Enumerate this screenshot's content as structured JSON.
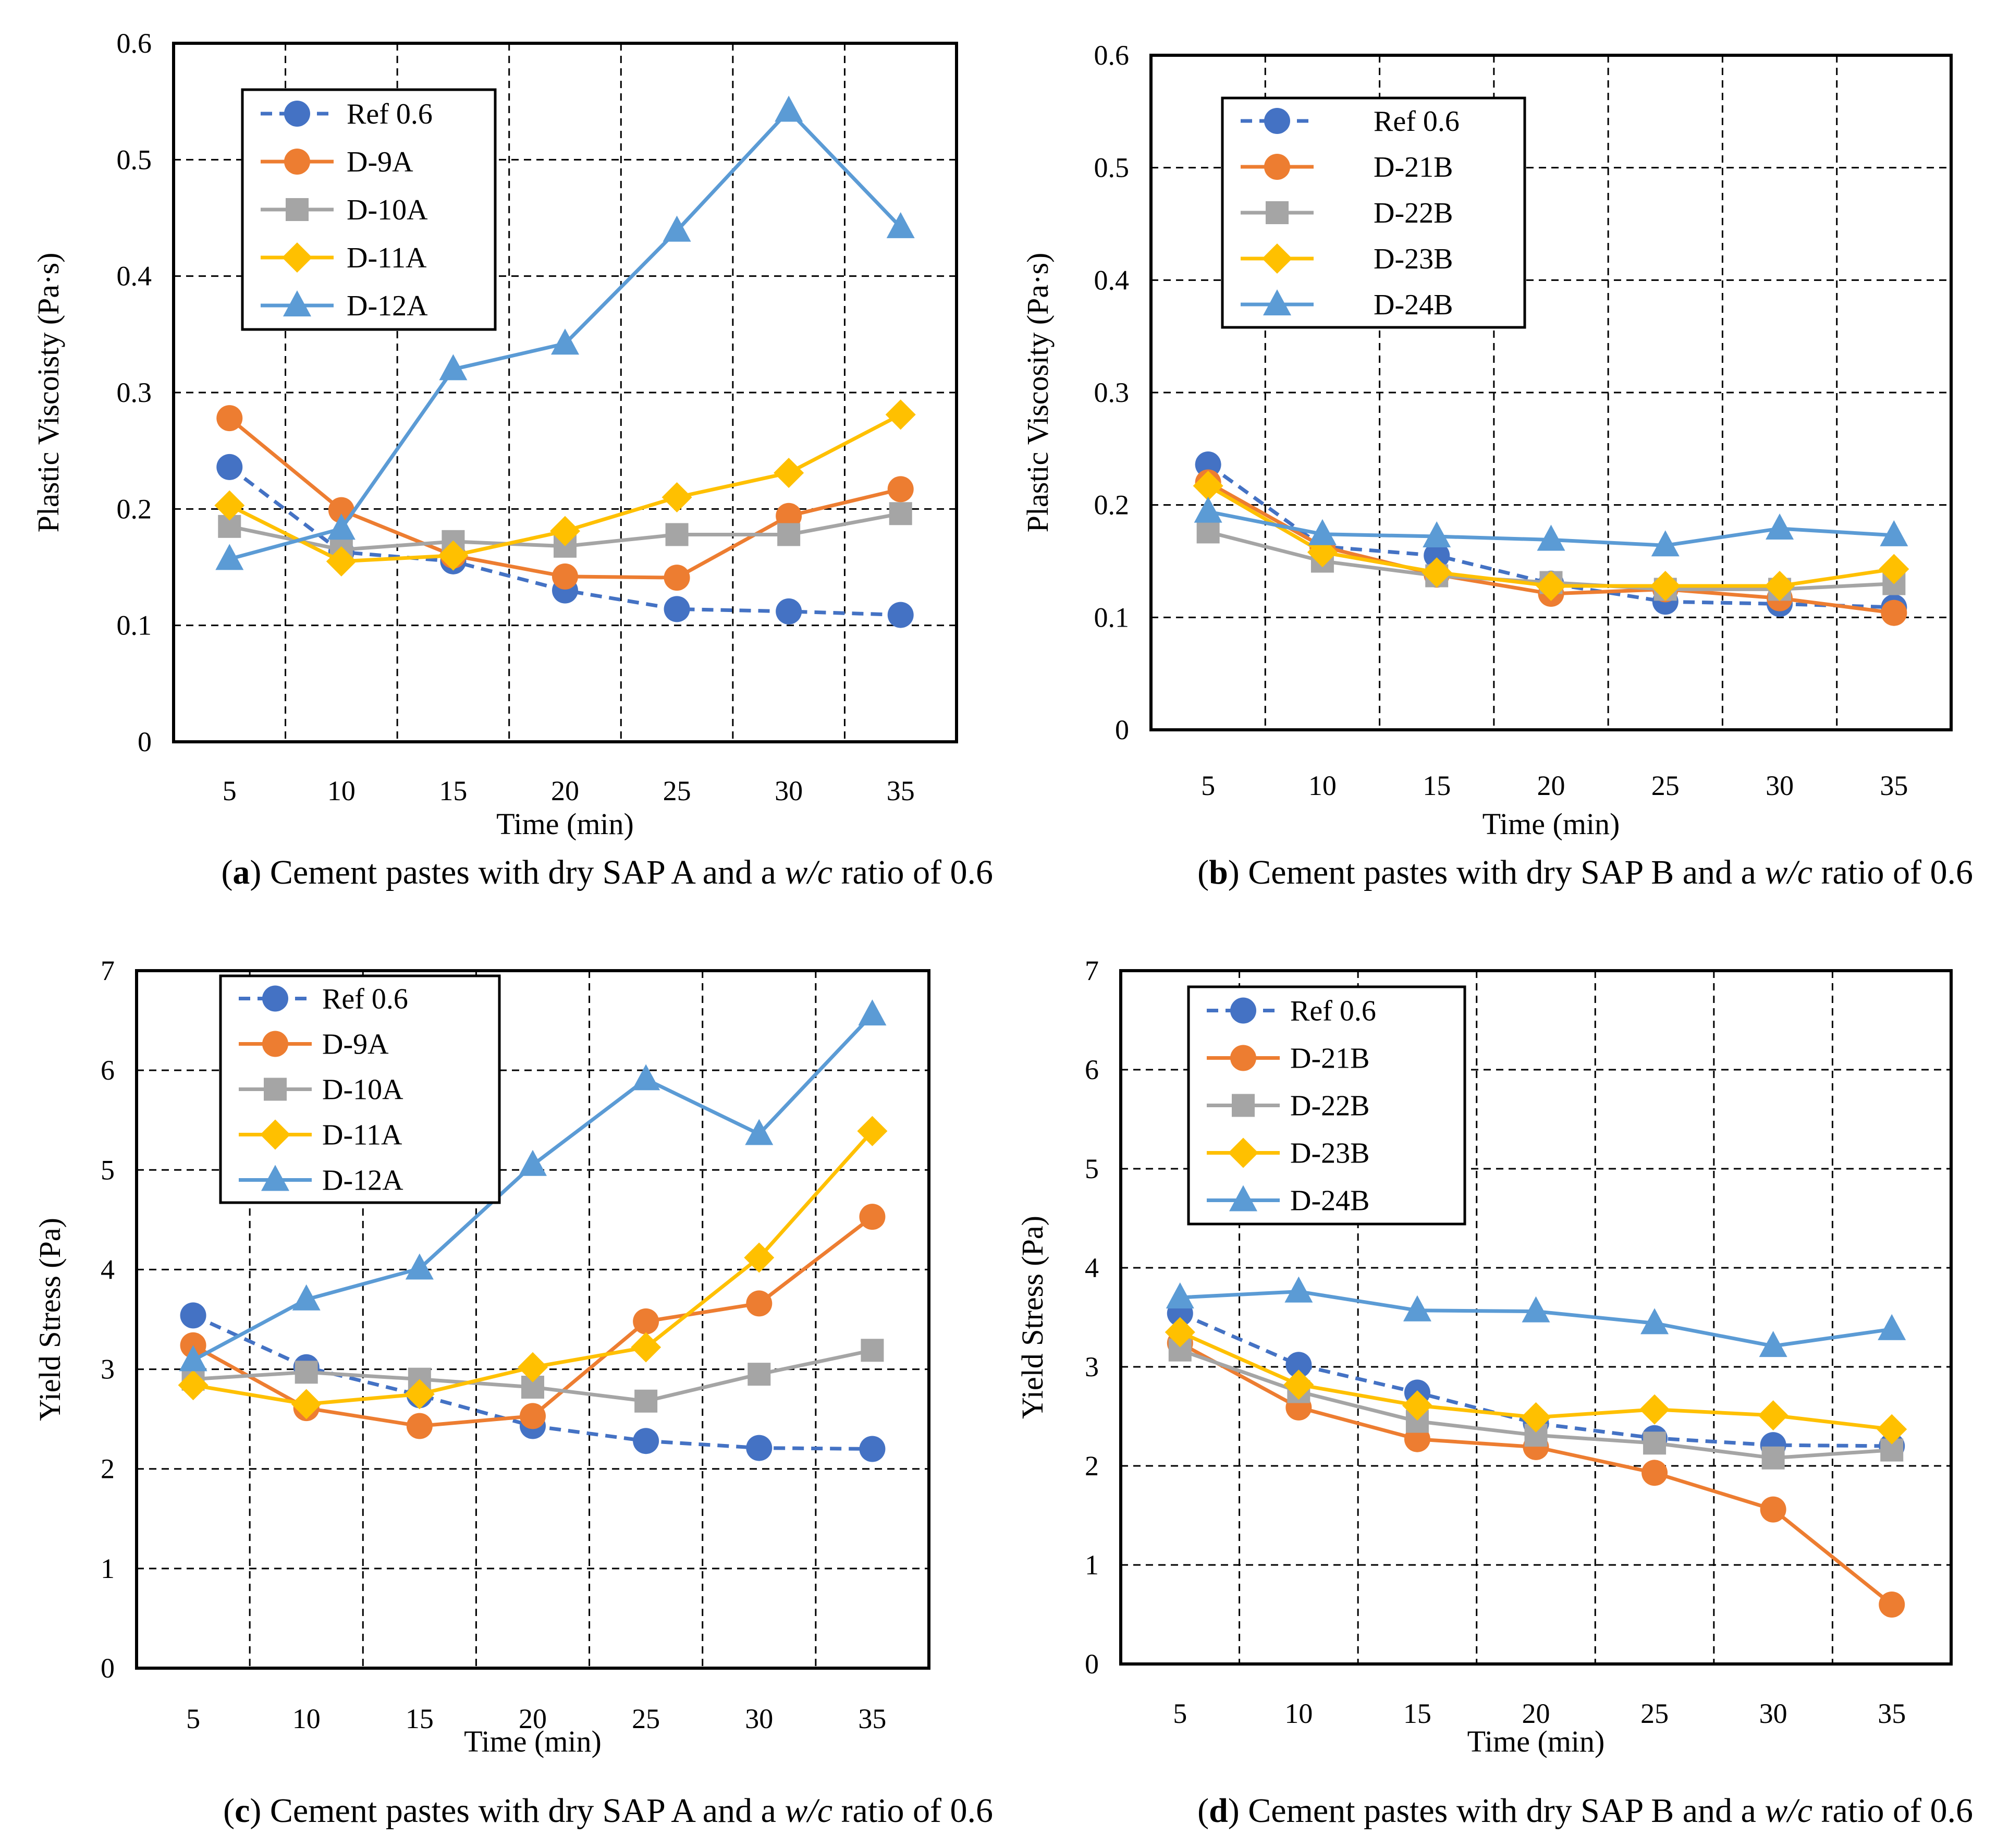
{
  "chart_data": [
    {
      "type": "line",
      "panel": "a",
      "caption_label": "a",
      "caption_text": " Cement pastes with dry SAP A and a ",
      "caption_var": "w/c",
      "caption_end": " ratio of 0.6",
      "xlabel": "Time (min)",
      "ylabel": "Plastic Viscoisty (Pa·s)",
      "categories": [
        "5",
        "10",
        "15",
        "20",
        "25",
        "30",
        "35"
      ],
      "ylim": [
        0,
        0.6
      ],
      "yticks": [
        "0",
        "0.1",
        "0.2",
        "0.3",
        "0.4",
        "0.5",
        "0.6"
      ],
      "grid": true,
      "legend_position": "top-left",
      "series": [
        {
          "name": "Ref 0.6",
          "values": [
            0.236,
            0.163,
            0.155,
            0.13,
            0.114,
            0.112,
            0.109
          ],
          "color": "#4472C4",
          "marker": "circle",
          "dash": true
        },
        {
          "name": "D-9A",
          "values": [
            0.278,
            0.199,
            0.16,
            0.142,
            0.141,
            0.194,
            0.217
          ],
          "color": "#ED7D31",
          "marker": "circle",
          "dash": false
        },
        {
          "name": "D-10A",
          "values": [
            0.185,
            0.165,
            0.172,
            0.168,
            0.178,
            0.178,
            0.196
          ],
          "color": "#A5A5A5",
          "marker": "square",
          "dash": false
        },
        {
          "name": "D-11A",
          "values": [
            0.203,
            0.155,
            0.16,
            0.181,
            0.21,
            0.231,
            0.281
          ],
          "color": "#FFC000",
          "marker": "diamond",
          "dash": false
        },
        {
          "name": "D-12A",
          "values": [
            0.157,
            0.183,
            0.32,
            0.342,
            0.439,
            0.542,
            0.442
          ],
          "color": "#5B9BD5",
          "marker": "triangle",
          "dash": false
        }
      ]
    },
    {
      "type": "line",
      "panel": "b",
      "caption_label": "b",
      "caption_text": " Cement pastes with dry SAP B and a ",
      "caption_var": "w/c",
      "caption_end": " ratio of 0.6",
      "xlabel": "Time (min)",
      "ylabel": "Plastic Viscosity (Pa·s)",
      "categories": [
        "5",
        "10",
        "15",
        "20",
        "25",
        "30",
        "35"
      ],
      "ylim": [
        0,
        0.6
      ],
      "yticks": [
        "0",
        "0.1",
        "0.2",
        "0.3",
        "0.4",
        "0.5",
        "0.6"
      ],
      "grid": true,
      "legend_position": "top-left",
      "series": [
        {
          "name": "Ref 0.6",
          "values": [
            0.236,
            0.163,
            0.155,
            0.13,
            0.114,
            0.112,
            0.109
          ],
          "color": "#4472C4",
          "marker": "circle",
          "dash": true
        },
        {
          "name": "D-21B",
          "values": [
            0.22,
            0.163,
            0.138,
            0.121,
            0.125,
            0.117,
            0.104
          ],
          "color": "#ED7D31",
          "marker": "circle",
          "dash": false
        },
        {
          "name": "D-22B",
          "values": [
            0.176,
            0.15,
            0.137,
            0.131,
            0.125,
            0.125,
            0.13
          ],
          "color": "#A5A5A5",
          "marker": "square",
          "dash": false
        },
        {
          "name": "D-23B",
          "values": [
            0.217,
            0.158,
            0.14,
            0.128,
            0.128,
            0.128,
            0.143
          ],
          "color": "#FFC000",
          "marker": "diamond",
          "dash": false
        },
        {
          "name": "D-24B",
          "values": [
            0.194,
            0.174,
            0.172,
            0.169,
            0.164,
            0.179,
            0.173
          ],
          "color": "#5B9BD5",
          "marker": "triangle",
          "dash": false
        }
      ]
    },
    {
      "type": "line",
      "panel": "c",
      "caption_label": "c",
      "caption_text": " Cement pastes with dry SAP A and a ",
      "caption_var": "w/c",
      "caption_end": " ratio of 0.6",
      "xlabel": "Time (min)",
      "ylabel": "Yield Stress (Pa)",
      "categories": [
        "5",
        "10",
        "15",
        "20",
        "25",
        "30",
        "35"
      ],
      "ylim": [
        0,
        7
      ],
      "yticks": [
        "0",
        "1",
        "2",
        "3",
        "4",
        "5",
        "6",
        "7"
      ],
      "grid": true,
      "legend_position": "top-left",
      "series": [
        {
          "name": "Ref 0.6",
          "values": [
            3.54,
            3.02,
            2.74,
            2.43,
            2.28,
            2.21,
            2.2
          ],
          "color": "#4472C4",
          "marker": "circle",
          "dash": true
        },
        {
          "name": "D-9A",
          "values": [
            3.24,
            2.61,
            2.43,
            2.53,
            3.48,
            3.66,
            4.53
          ],
          "color": "#ED7D31",
          "marker": "circle",
          "dash": false
        },
        {
          "name": "D-10A",
          "values": [
            2.9,
            2.97,
            2.9,
            2.82,
            2.68,
            2.95,
            3.19
          ],
          "color": "#A5A5A5",
          "marker": "square",
          "dash": false
        },
        {
          "name": "D-11A",
          "values": [
            2.84,
            2.65,
            2.75,
            3.02,
            3.22,
            4.12,
            5.39
          ],
          "color": "#FFC000",
          "marker": "diamond",
          "dash": false
        },
        {
          "name": "D-12A",
          "values": [
            3.09,
            3.7,
            4.01,
            5.05,
            5.91,
            5.36,
            6.56
          ],
          "color": "#5B9BD5",
          "marker": "triangle",
          "dash": false
        }
      ]
    },
    {
      "type": "line",
      "panel": "d",
      "caption_label": "d",
      "caption_text": " Cement pastes with dry SAP B and a ",
      "caption_var": "w/c",
      "caption_end": " ratio of 0.6",
      "xlabel": "Time (min)",
      "ylabel": "Yield Stress (Pa)",
      "categories": [
        "5",
        "10",
        "15",
        "20",
        "25",
        "30",
        "35"
      ],
      "ylim": [
        0,
        7
      ],
      "yticks": [
        "0",
        "1",
        "2",
        "3",
        "4",
        "5",
        "6",
        "7"
      ],
      "grid": true,
      "legend_position": "top-left",
      "series": [
        {
          "name": "Ref 0.6",
          "values": [
            3.54,
            3.02,
            2.74,
            2.43,
            2.28,
            2.21,
            2.2
          ],
          "color": "#4472C4",
          "marker": "circle",
          "dash": true
        },
        {
          "name": "D-21B",
          "values": [
            3.24,
            2.59,
            2.27,
            2.19,
            1.93,
            1.56,
            0.6
          ],
          "color": "#ED7D31",
          "marker": "circle",
          "dash": false
        },
        {
          "name": "D-22B",
          "values": [
            3.17,
            2.75,
            2.45,
            2.31,
            2.23,
            2.08,
            2.16
          ],
          "color": "#A5A5A5",
          "marker": "square",
          "dash": false
        },
        {
          "name": "D-23B",
          "values": [
            3.35,
            2.82,
            2.61,
            2.49,
            2.57,
            2.51,
            2.37
          ],
          "color": "#FFC000",
          "marker": "diamond",
          "dash": false
        },
        {
          "name": "D-24B",
          "values": [
            3.7,
            3.76,
            3.57,
            3.56,
            3.44,
            3.21,
            3.38
          ],
          "color": "#5B9BD5",
          "marker": "triangle",
          "dash": false
        }
      ]
    }
  ]
}
